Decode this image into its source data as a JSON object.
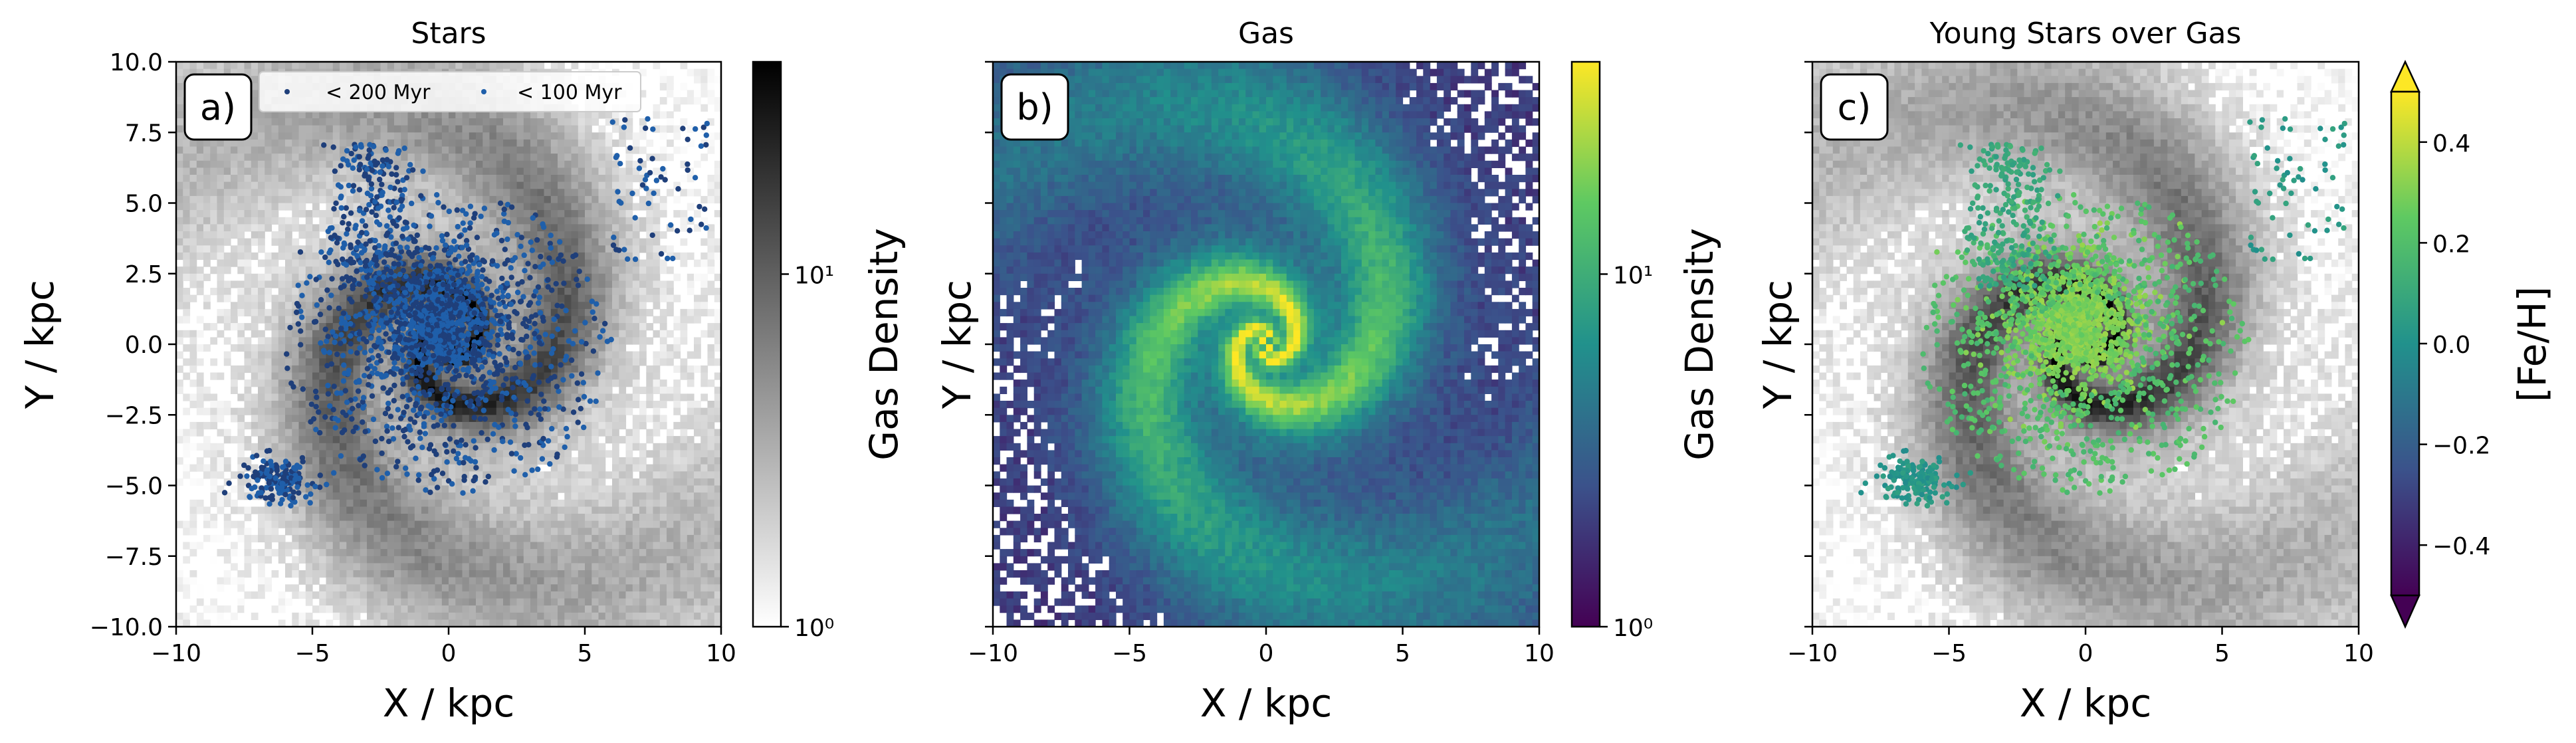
{
  "chart_data": [
    {
      "type": "heatmap",
      "panel_label": "a)",
      "title": "Stars",
      "xlabel": "X / kpc",
      "ylabel": "Y / kpc",
      "xlim": [
        -10,
        10
      ],
      "ylim": [
        -10,
        10
      ],
      "xticks": [
        -10,
        -5,
        0,
        5,
        10
      ],
      "yticks": [
        -10.0,
        -7.5,
        -5.0,
        -2.5,
        0.0,
        2.5,
        5.0,
        7.5,
        10.0
      ],
      "xtick_labels": [
        "−10",
        "−5",
        "0",
        "5",
        "10"
      ],
      "ytick_labels": [
        "−10.0",
        "−7.5",
        "−5.0",
        "−2.5",
        "0.0",
        "2.5",
        "5.0",
        "7.5",
        "10.0"
      ],
      "background": "gas density histogram (grayscale)",
      "overlay": "scatter of young stars",
      "legend": {
        "placement": "upper-center",
        "entries": [
          {
            "label": "< 200 Myr",
            "color": "#1f3f7a"
          },
          {
            "label": "< 100 Myr",
            "color": "#1f5faa"
          }
        ]
      },
      "colorbar": {
        "label": "Gas Density",
        "scale": "log",
        "range": [
          1,
          40
        ],
        "tick_labels": [
          "10⁰",
          "10¹"
        ],
        "tick_values": [
          1,
          10
        ],
        "colormap": "Greys",
        "colors": [
          "#ffffff",
          "#000000"
        ]
      }
    },
    {
      "type": "heatmap",
      "panel_label": "b)",
      "title": "Gas",
      "xlabel": "X / kpc",
      "ylabel": "Y / kpc",
      "xlim": [
        -10,
        10
      ],
      "ylim": [
        -10,
        10
      ],
      "xticks": [
        -10,
        -5,
        0,
        5,
        10
      ],
      "xtick_labels": [
        "−10",
        "−5",
        "0",
        "5",
        "10"
      ],
      "colorbar": {
        "label": "Gas Density",
        "scale": "log",
        "range": [
          1,
          40
        ],
        "tick_labels": [
          "10⁰",
          "10¹"
        ],
        "tick_values": [
          1,
          10
        ],
        "colormap": "viridis",
        "colors": [
          "#440154",
          "#3b528b",
          "#21918c",
          "#5ec962",
          "#fde725"
        ]
      }
    },
    {
      "type": "heatmap",
      "panel_label": "c)",
      "title": "Young Stars over Gas",
      "xlabel": "X / kpc",
      "ylabel": "Y / kpc",
      "xlim": [
        -10,
        10
      ],
      "ylim": [
        -10,
        10
      ],
      "xticks": [
        -10,
        -5,
        0,
        5,
        10
      ],
      "xtick_labels": [
        "−10",
        "−5",
        "0",
        "5",
        "10"
      ],
      "background": "gas density histogram (grayscale)",
      "overlay": "scatter of young stars colored by [Fe/H]",
      "colorbar": {
        "label": "[Fe/H]",
        "scale": "linear",
        "range": [
          -0.5,
          0.5
        ],
        "extend": "both",
        "tick_values": [
          -0.4,
          -0.2,
          0.0,
          0.2,
          0.4
        ],
        "tick_labels": [
          "−0.4",
          "−0.2",
          "0.0",
          "0.2",
          "0.4"
        ],
        "colormap": "viridis",
        "colors": [
          "#440154",
          "#3b528b",
          "#21918c",
          "#5ec962",
          "#fde725"
        ]
      }
    }
  ]
}
